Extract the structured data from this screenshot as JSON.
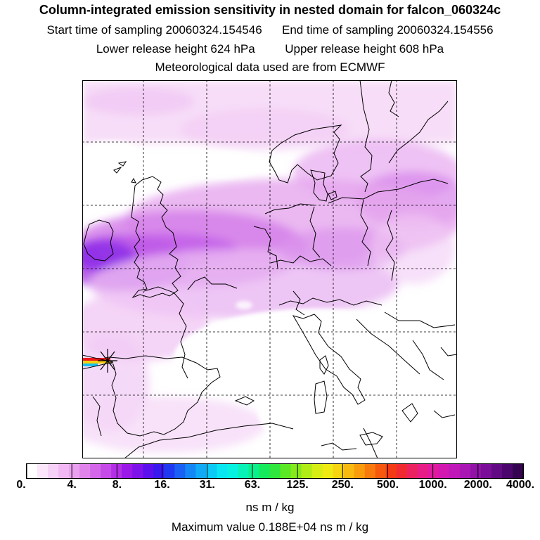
{
  "header": {
    "title": "Column-integrated emission sensitivity in nested domain for falcon_060324c",
    "start_label": "Start time of sampling 20060324.154546",
    "end_label": "End time of sampling 20060324.154556",
    "lower_label": "Lower release height  624 hPa",
    "upper_label": "Upper release height  608 hPa",
    "met_label": "Meteorological data used are from ECMWF"
  },
  "colorbar": {
    "tick_labels": [
      "0.",
      "4.",
      "8.",
      "16.",
      "31.",
      "63.",
      "125.",
      "250.",
      "500.",
      "1000.",
      "2000.",
      "4000."
    ],
    "colors": [
      "#ffffff",
      "#fbe6fb",
      "#f6d0f7",
      "#f1b8f3",
      "#e9a0ef",
      "#e084ec",
      "#d466ea",
      "#c64ae8",
      "#b32ee6",
      "#9a18e8",
      "#7e12ea",
      "#5c10ee",
      "#3a18f0",
      "#2038f2",
      "#1a60f4",
      "#1487f6",
      "#10aaf7",
      "#0ccaf6",
      "#08e6f2",
      "#06f2e0",
      "#08f2b8",
      "#0aef8c",
      "#14ea5c",
      "#2ee63c",
      "#5ae824",
      "#86ea1a",
      "#b0ec16",
      "#d6ee14",
      "#eeea12",
      "#f6d410",
      "#f8ba0e",
      "#f89c0c",
      "#f87a0c",
      "#f6580e",
      "#f43a14",
      "#f02a30",
      "#ec2260",
      "#e81c86",
      "#e019a0",
      "#d218b0",
      "#c018b8",
      "#aa16b4",
      "#9212a8",
      "#7a0e98",
      "#620a84",
      "#4a066c",
      "#340450"
    ]
  },
  "units": "ns m / kg",
  "max_value_label": "Maximum value  0.188E+04 ns m / kg",
  "map": {
    "frame_color": "#000000",
    "coast_color": "#000000",
    "grid_style": "dashed",
    "release_marker": "x-mark-icon"
  }
}
